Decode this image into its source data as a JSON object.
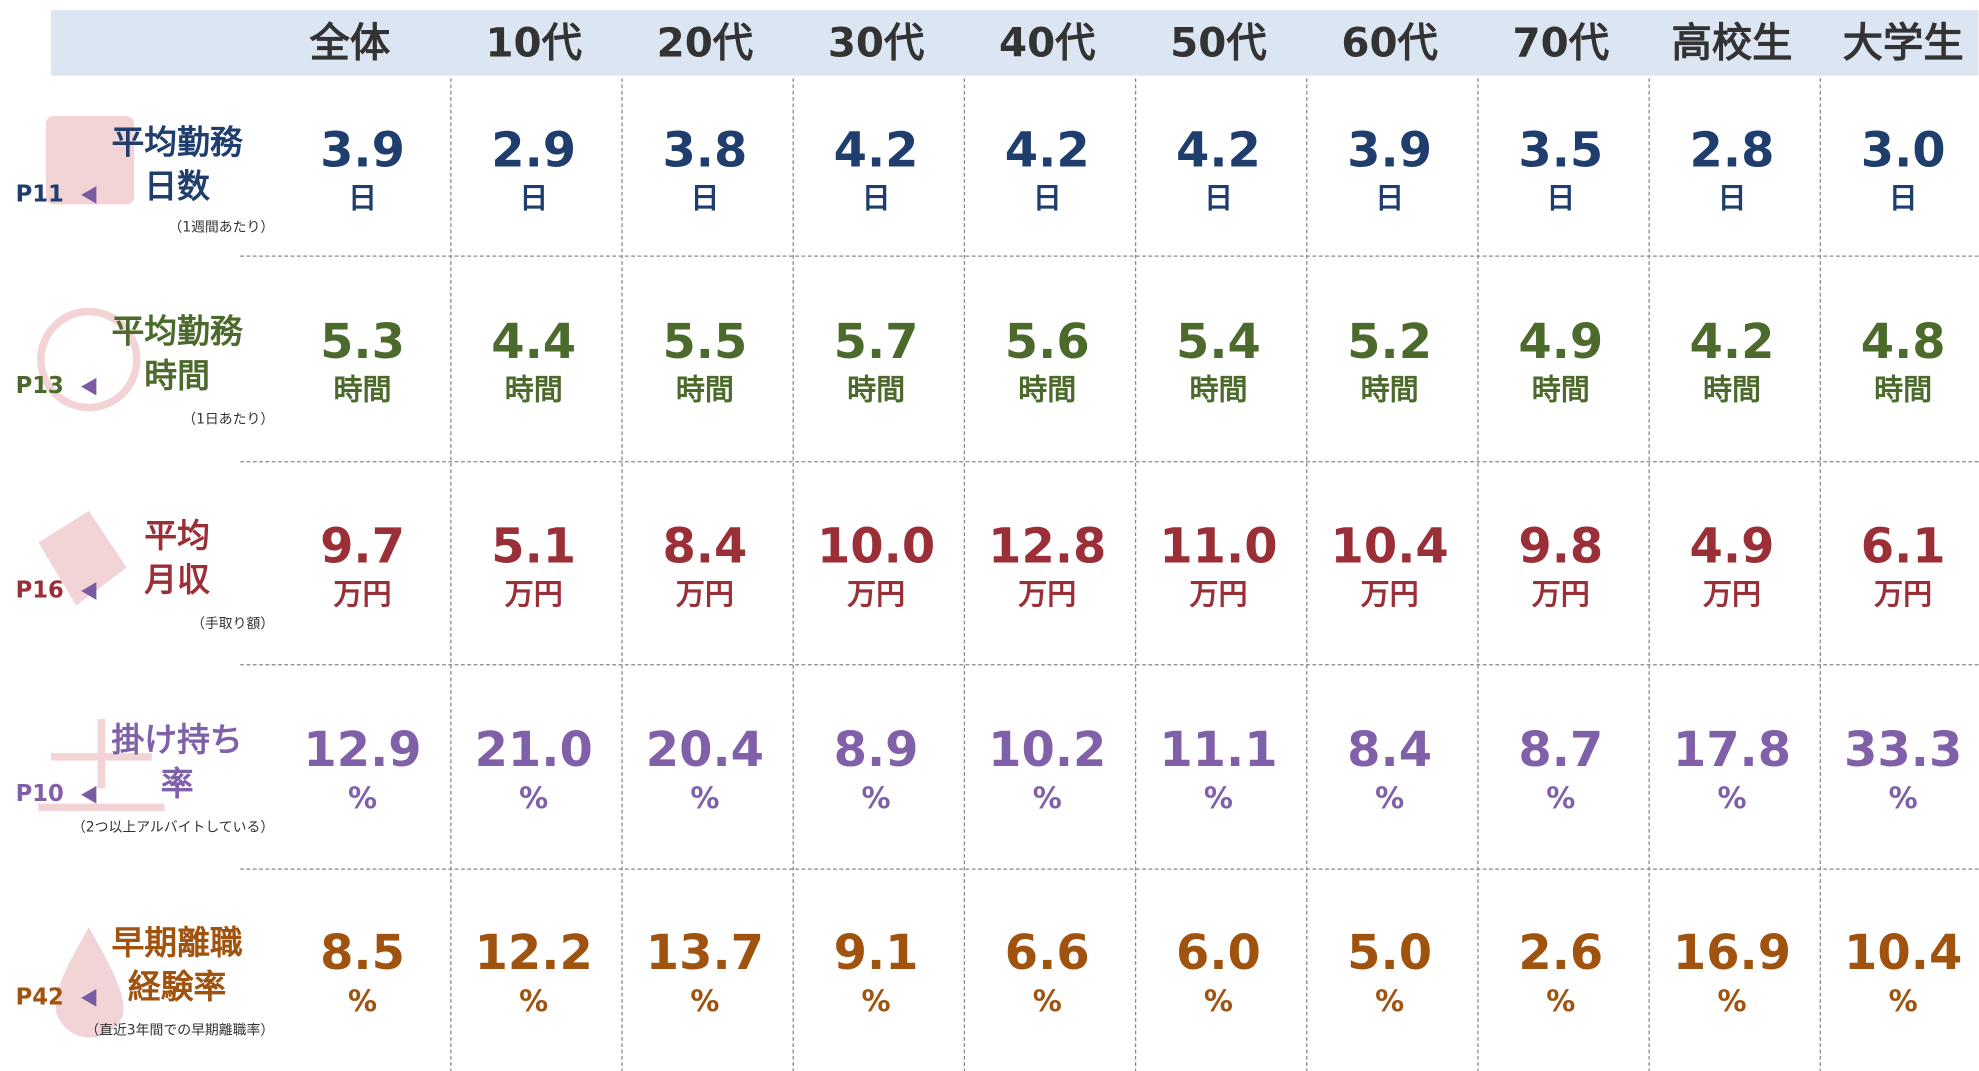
{
  "header": {
    "columns": [
      "全体",
      "10代",
      "20代",
      "30代",
      "40代",
      "50代",
      "60代",
      "70代",
      "高校生",
      "大学生"
    ]
  },
  "rows": [
    {
      "label": [
        "平均勤務",
        "日数"
      ],
      "page": "P11",
      "note": "（1週間あたり）",
      "unit": "日",
      "color": "#1f3e6e",
      "values": [
        "3.9",
        "2.9",
        "3.8",
        "4.2",
        "4.2",
        "4.2",
        "3.9",
        "3.5",
        "2.8",
        "3.0"
      ]
    },
    {
      "label": [
        "平均勤務",
        "時間"
      ],
      "page": "P13",
      "note": "（1日あたり）",
      "unit": "時間",
      "color": "#4b6a2b",
      "values": [
        "5.3",
        "4.4",
        "5.5",
        "5.7",
        "5.6",
        "5.4",
        "5.2",
        "4.9",
        "4.2",
        "4.8"
      ]
    },
    {
      "label": [
        "平均",
        "月収"
      ],
      "page": "P16",
      "note": "（手取り額）",
      "unit": "万円",
      "color": "#9a2f37",
      "values": [
        "9.7",
        "5.1",
        "8.4",
        "10.0",
        "12.8",
        "11.0",
        "10.4",
        "9.8",
        "4.9",
        "6.1"
      ]
    },
    {
      "label": [
        "掛け持ち",
        "率"
      ],
      "page": "P10",
      "note": "（2つ以上アルバイトしている）",
      "unit": "%",
      "color": "#8060a8",
      "values": [
        "12.9",
        "21.0",
        "20.4",
        "8.9",
        "10.2",
        "11.1",
        "8.4",
        "8.7",
        "17.8",
        "33.3"
      ]
    },
    {
      "label": [
        "早期離職",
        "経験率"
      ],
      "page": "P42",
      "note": "（直近3年間での早期離職率）",
      "unit": "%",
      "color": "#a0520f",
      "values": [
        "8.5",
        "12.2",
        "13.7",
        "9.1",
        "6.6",
        "6.0",
        "5.0",
        "2.6",
        "16.9",
        "10.4"
      ]
    }
  ]
}
